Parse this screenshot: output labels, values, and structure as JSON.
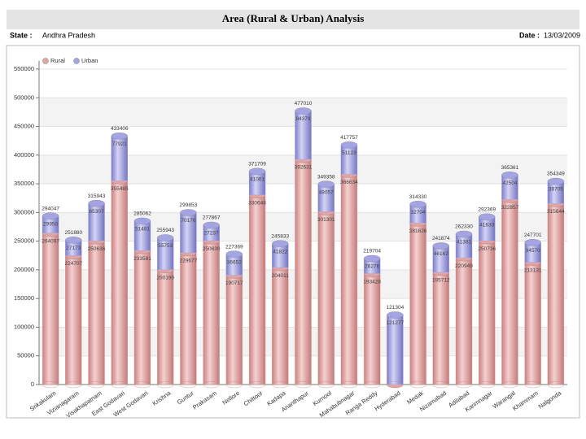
{
  "header": {
    "title": "Area (Rural & Urban) Analysis",
    "state_label": "State :",
    "state": "Andhra Pradesh",
    "date_label": "Date :",
    "date": "13/03/2009"
  },
  "chart_data": {
    "type": "stacked_cylinder",
    "categories": [
      "Srikakulam",
      "Vizianagaram",
      "Visakhapatnam",
      "East Godavari",
      "West Godavari",
      "Krishna",
      "Guntur",
      "Prakasam",
      "Nellore",
      "Chittoor",
      "Kadapa",
      "Ananthapur",
      "Kurnool",
      "Mahabubnagar",
      "Ranga Reddy",
      "Hyderabad",
      "Medak",
      "Nizamabad",
      "Adilabad",
      "Karimnagar",
      "Warangal",
      "Khammam",
      "Nalgonda"
    ],
    "series": [
      {
        "name": "Rural",
        "color": "#e4a4a4",
        "values": [
          264097,
          224707,
          250636,
          355485,
          233581,
          200190,
          229677,
          250630,
          190717,
          330648,
          204011,
          392631,
          301301,
          366634,
          193428,
          27,
          281626,
          195712,
          220949,
          250736,
          322857,
          213131,
          315644
        ]
      },
      {
        "name": "Urban",
        "color": "#a4a4e4",
        "values": [
          29950,
          27173,
          65307,
          77921,
          51481,
          55753,
          70176,
          27237,
          36652,
          41061,
          41822,
          84379,
          48057,
          51123,
          26276,
          121277,
          32704,
          46162,
          41381,
          41633,
          42504,
          34570,
          38705
        ]
      }
    ],
    "totals": [
      294047,
      251880,
      315943,
      433406,
      285062,
      255943,
      299853,
      277867,
      227369,
      371709,
      245833,
      477010,
      349358,
      417757,
      219704,
      121304,
      314330,
      241874,
      262330,
      292369,
      365361,
      247701,
      354349
    ],
    "ylim": [
      0,
      550000
    ],
    "yticks": [
      0,
      50000,
      100000,
      150000,
      200000,
      250000,
      300000,
      350000,
      400000,
      450000,
      500000,
      550000
    ],
    "grid": true,
    "legend": "top-left"
  }
}
